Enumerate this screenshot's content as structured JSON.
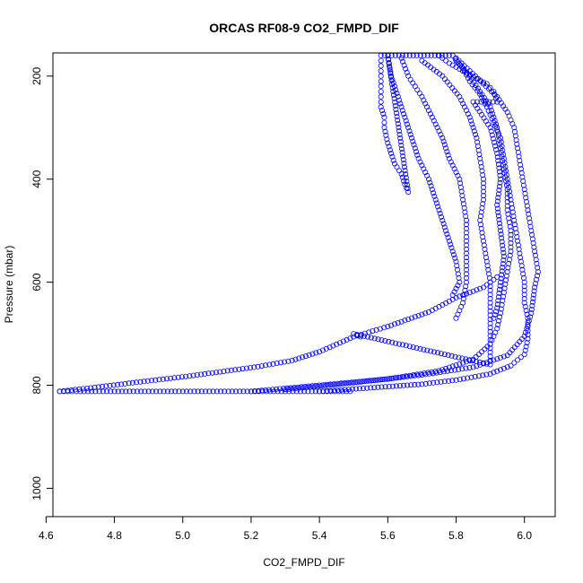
{
  "chart_data": {
    "type": "scatter",
    "title": "ORCAS RF08-9 CO2_FMPD_DIF",
    "xlabel": "CO2_FMPD_DIF",
    "ylabel": "Pressure (mbar)",
    "xlim": [
      4.62,
      6.09
    ],
    "ylim": [
      1055,
      155
    ],
    "y_reversed": true,
    "x_ticks": [
      4.6,
      4.8,
      5.0,
      5.2,
      5.4,
      5.6,
      5.8,
      6.0
    ],
    "x_tick_labels": [
      "4.6",
      "4.8",
      "5.0",
      "5.2",
      "5.4",
      "5.6",
      "5.8",
      "6.0"
    ],
    "y_ticks": [
      200,
      400,
      600,
      800,
      1000
    ],
    "y_tick_labels": [
      "200",
      "400",
      "600",
      "800",
      "1000"
    ],
    "grid": false,
    "marker": "open-circle",
    "colors": {
      "points": "#0000ff",
      "axis": "#000000",
      "background": "#ffffff"
    },
    "series": [
      {
        "points": [
          [
            4.64,
            812
          ],
          [
            4.7,
            812
          ],
          [
            4.8,
            812
          ],
          [
            4.9,
            812
          ],
          [
            5.0,
            812
          ],
          [
            5.1,
            812
          ],
          [
            5.2,
            812
          ],
          [
            5.3,
            812
          ],
          [
            5.4,
            812
          ],
          [
            5.49,
            812
          ],
          [
            4.64,
            812
          ],
          [
            4.72,
            806
          ],
          [
            4.82,
            798
          ],
          [
            4.92,
            790
          ],
          [
            5.02,
            782
          ],
          [
            5.12,
            773
          ],
          [
            5.22,
            764
          ],
          [
            5.32,
            752
          ],
          [
            5.4,
            735
          ],
          [
            5.5,
            706
          ],
          [
            5.6,
            686
          ],
          [
            5.72,
            658
          ],
          [
            5.8,
            630
          ],
          [
            5.88,
            610
          ],
          [
            5.92,
            590
          ],
          [
            5.2,
            812
          ],
          [
            5.4,
            800
          ],
          [
            5.6,
            788
          ],
          [
            5.75,
            772
          ],
          [
            5.85,
            750
          ],
          [
            5.9,
            720
          ],
          [
            5.92,
            690
          ],
          [
            5.93,
            660
          ],
          [
            5.94,
            620
          ],
          [
            5.95,
            580
          ],
          [
            5.96,
            540
          ],
          [
            5.96,
            500
          ],
          [
            5.95,
            460
          ],
          [
            5.95,
            420
          ],
          [
            5.94,
            380
          ],
          [
            5.93,
            340
          ],
          [
            5.92,
            300
          ],
          [
            5.9,
            260
          ],
          [
            5.87,
            230
          ],
          [
            5.84,
            200
          ],
          [
            5.8,
            170
          ],
          [
            5.3,
            808
          ],
          [
            5.5,
            795
          ],
          [
            5.7,
            780
          ],
          [
            5.85,
            765
          ],
          [
            5.95,
            742
          ],
          [
            6.0,
            705
          ],
          [
            6.02,
            660
          ],
          [
            6.03,
            610
          ],
          [
            6.04,
            580
          ],
          [
            6.03,
            540
          ],
          [
            6.02,
            500
          ],
          [
            6.01,
            460
          ],
          [
            6.0,
            420
          ],
          [
            5.99,
            380
          ],
          [
            5.98,
            340
          ],
          [
            5.97,
            300
          ],
          [
            5.95,
            270
          ],
          [
            5.92,
            240
          ],
          [
            5.88,
            215
          ],
          [
            5.84,
            190
          ],
          [
            5.8,
            165
          ],
          [
            5.4,
            812
          ],
          [
            5.55,
            805
          ],
          [
            5.7,
            798
          ],
          [
            5.8,
            790
          ],
          [
            5.9,
            778
          ],
          [
            5.96,
            762
          ],
          [
            6.0,
            740
          ],
          [
            6.01,
            710
          ],
          [
            6.01,
            670
          ],
          [
            6.0,
            640
          ],
          [
            6.0,
            600
          ],
          [
            5.99,
            560
          ],
          [
            5.98,
            520
          ],
          [
            5.97,
            480
          ],
          [
            5.96,
            440
          ],
          [
            5.95,
            400
          ],
          [
            5.94,
            360
          ],
          [
            5.93,
            320
          ],
          [
            5.91,
            290
          ],
          [
            5.89,
            260
          ],
          [
            5.87,
            235
          ],
          [
            5.84,
            210
          ],
          [
            5.82,
            185
          ],
          [
            5.79,
            160
          ],
          [
            5.58,
            160
          ],
          [
            5.58,
            180
          ],
          [
            5.58,
            200
          ],
          [
            5.58,
            220
          ],
          [
            5.58,
            240
          ],
          [
            5.58,
            260
          ],
          [
            5.59,
            280
          ],
          [
            5.59,
            300
          ],
          [
            5.6,
            330
          ],
          [
            5.61,
            350
          ],
          [
            5.62,
            370
          ],
          [
            5.64,
            390
          ],
          [
            5.65,
            410
          ],
          [
            5.66,
            425
          ],
          [
            5.6,
            160
          ],
          [
            5.61,
            200
          ],
          [
            5.63,
            240
          ],
          [
            5.65,
            280
          ],
          [
            5.67,
            320
          ],
          [
            5.69,
            360
          ],
          [
            5.72,
            400
          ],
          [
            5.74,
            440
          ],
          [
            5.76,
            480
          ],
          [
            5.78,
            520
          ],
          [
            5.8,
            560
          ],
          [
            5.81,
            600
          ],
          [
            5.79,
            625
          ],
          [
            5.64,
            165
          ],
          [
            5.66,
            200
          ],
          [
            5.7,
            240
          ],
          [
            5.73,
            280
          ],
          [
            5.76,
            320
          ],
          [
            5.78,
            360
          ],
          [
            5.81,
            400
          ],
          [
            5.82,
            440
          ],
          [
            5.83,
            480
          ],
          [
            5.83,
            520
          ],
          [
            5.83,
            560
          ],
          [
            5.83,
            600
          ],
          [
            5.82,
            640
          ],
          [
            5.8,
            670
          ],
          [
            5.7,
            170
          ],
          [
            5.76,
            200
          ],
          [
            5.81,
            240
          ],
          [
            5.84,
            280
          ],
          [
            5.86,
            320
          ],
          [
            5.87,
            360
          ],
          [
            5.88,
            400
          ],
          [
            5.88,
            440
          ],
          [
            5.87,
            480
          ],
          [
            5.88,
            520
          ],
          [
            5.89,
            560
          ],
          [
            5.9,
            600
          ],
          [
            5.9,
            640
          ],
          [
            5.9,
            680
          ],
          [
            5.9,
            720
          ],
          [
            5.9,
            760
          ],
          [
            5.5,
            700
          ],
          [
            5.51,
            703
          ],
          [
            5.52,
            706
          ],
          [
            5.75,
            160
          ],
          [
            5.78,
            175
          ],
          [
            5.82,
            190
          ],
          [
            5.86,
            205
          ],
          [
            5.89,
            215
          ],
          [
            5.91,
            230
          ],
          [
            5.92,
            250
          ],
          [
            5.85,
            250
          ],
          [
            5.9,
            300
          ],
          [
            5.92,
            350
          ],
          [
            5.93,
            400
          ],
          [
            5.92,
            450
          ],
          [
            5.93,
            500
          ],
          [
            5.94,
            550
          ],
          [
            5.93,
            600
          ],
          [
            5.92,
            650
          ],
          [
            5.91,
            670
          ]
        ]
      }
    ]
  }
}
